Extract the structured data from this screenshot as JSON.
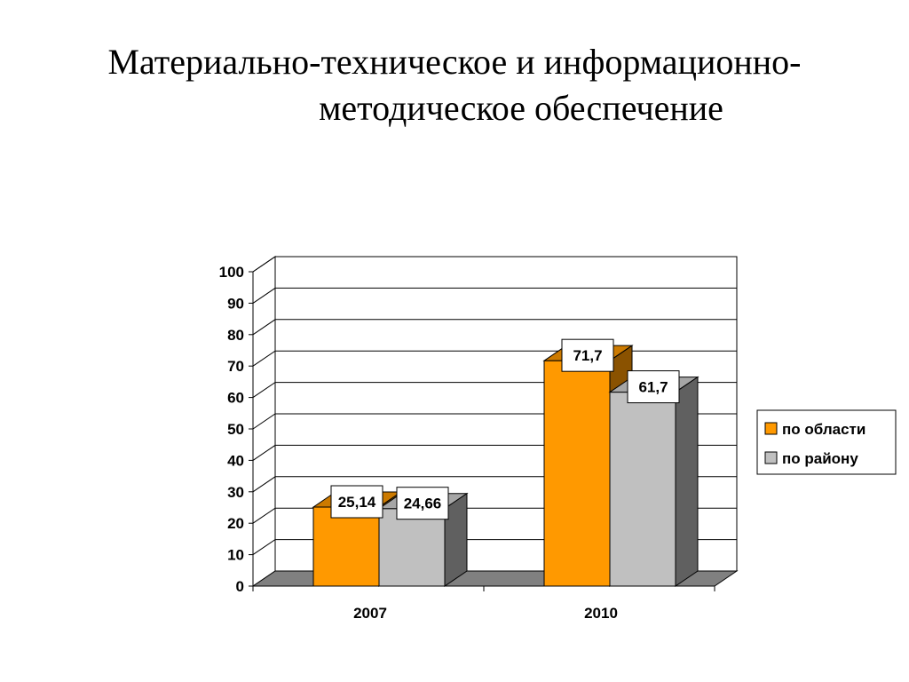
{
  "title": {
    "line1": "Материально-техническое и информационно-",
    "line2": "методическое обеспечение"
  },
  "chart_data": {
    "type": "bar",
    "categories": [
      "2007",
      "2010"
    ],
    "series": [
      {
        "name": "по области",
        "values": [
          25.14,
          71.7
        ],
        "labels": [
          "25,14",
          "71,7"
        ],
        "color": "#FF9900",
        "top_color": "#CC7A00",
        "side_color": "#8A5200"
      },
      {
        "name": "по району",
        "values": [
          24.66,
          61.7
        ],
        "labels": [
          "24,66",
          "61,7"
        ],
        "color": "#C0C0C0",
        "top_color": "#A6A6A6",
        "side_color": "#606060"
      }
    ],
    "title": "",
    "xlabel": "",
    "ylabel": "",
    "ylim": [
      0,
      100
    ],
    "y_ticks": [
      0,
      10,
      20,
      30,
      40,
      50,
      60,
      70,
      80,
      90,
      100
    ],
    "grid": true,
    "style": "3d-clustered-column",
    "legend": "right"
  }
}
